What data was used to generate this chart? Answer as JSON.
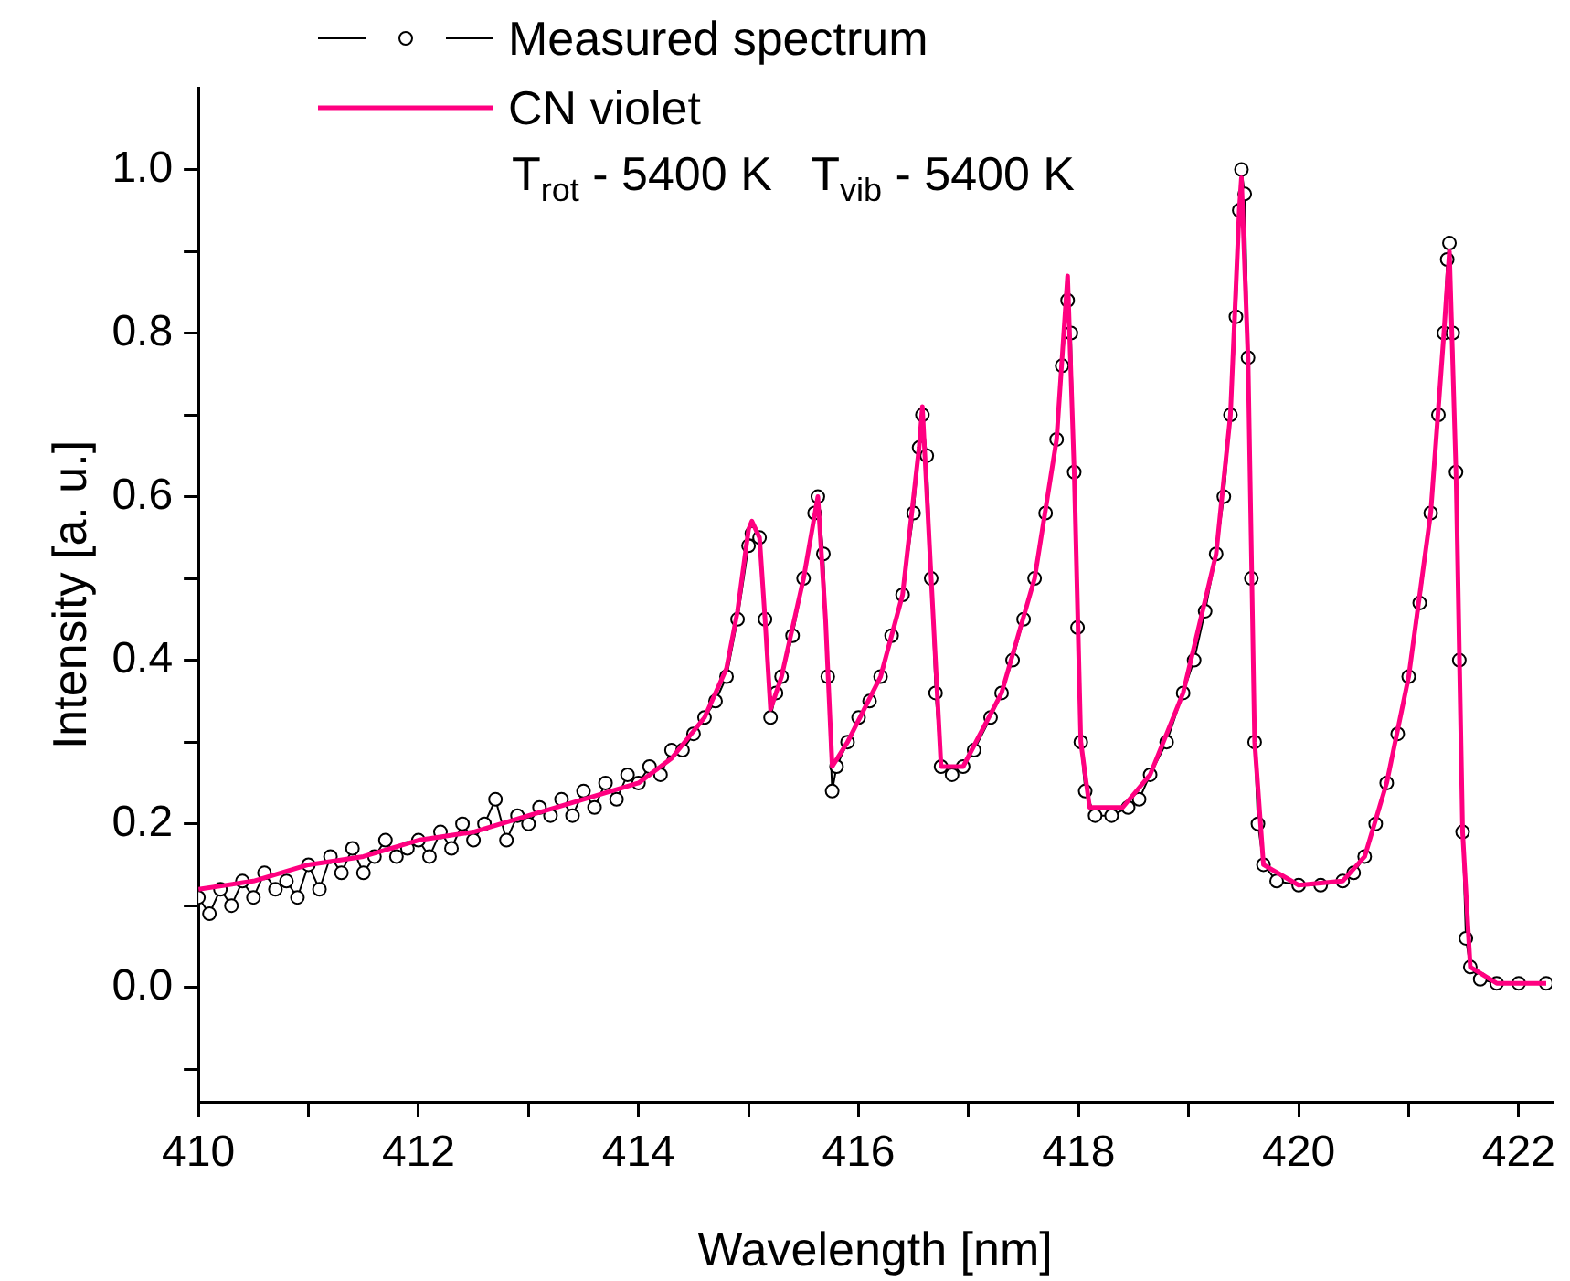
{
  "chart_data": {
    "type": "line",
    "xlabel": "Wavelength [nm]",
    "ylabel": "Intensity [a. u.]",
    "xlim": [
      410,
      422.3
    ],
    "ylim": [
      -0.14,
      1.1
    ],
    "xticks": [
      410,
      {
        "value": 411,
        "label": null
      },
      412,
      {
        "value": 413,
        "label": null
      },
      414,
      {
        "value": 415,
        "label": null
      },
      416,
      {
        "value": 417,
        "label": null
      },
      418,
      {
        "value": 419,
        "label": null
      },
      420,
      {
        "value": 421,
        "label": null
      },
      422
    ],
    "yticks": [
      {
        "value": -0.1,
        "label": null
      },
      {
        "value": 0,
        "label": "0.0"
      },
      {
        "value": 0.1,
        "label": null
      },
      0.2,
      {
        "value": 0.3,
        "label": null
      },
      0.4,
      {
        "value": 0.5,
        "label": null
      },
      0.6,
      {
        "value": 0.7,
        "label": null
      },
      0.8,
      {
        "value": 0.9,
        "label": null
      },
      {
        "value": 1,
        "label": "1.0"
      }
    ],
    "grid": false,
    "legend": "top left",
    "annotations": [
      "T$_{rot}$ - 5400 K   T$_{vib}$ - 5400 K"
    ],
    "series": [
      {
        "name": "Measured spectrum",
        "color": "#000000",
        "marker": "circle",
        "line_style": "solid",
        "x": [
          410.0,
          410.1,
          410.2,
          410.3,
          410.4,
          410.5,
          410.6,
          410.7,
          410.8,
          410.9,
          411.0,
          411.1,
          411.2,
          411.3,
          411.4,
          411.5,
          411.6,
          411.7,
          411.8,
          411.9,
          412.0,
          412.1,
          412.2,
          412.3,
          412.4,
          412.5,
          412.6,
          412.7,
          412.8,
          412.9,
          413.0,
          413.1,
          413.2,
          413.3,
          413.4,
          413.5,
          413.6,
          413.7,
          413.8,
          413.9,
          414.0,
          414.1,
          414.2,
          414.3,
          414.4,
          414.5,
          414.6,
          414.7,
          414.8,
          414.9,
          415.0,
          415.03,
          415.1,
          415.15,
          415.2,
          415.25,
          415.3,
          415.4,
          415.5,
          415.6,
          415.63,
          415.68,
          415.72,
          415.76,
          415.8,
          415.9,
          416.0,
          416.1,
          416.2,
          416.3,
          416.4,
          416.5,
          416.55,
          416.58,
          416.62,
          416.66,
          416.7,
          416.75,
          416.85,
          416.95,
          417.05,
          417.2,
          417.3,
          417.4,
          417.5,
          417.6,
          417.7,
          417.8,
          417.85,
          417.9,
          417.93,
          417.96,
          417.99,
          418.02,
          418.06,
          418.15,
          418.3,
          418.45,
          418.55,
          418.65,
          418.8,
          418.95,
          419.05,
          419.15,
          419.25,
          419.32,
          419.38,
          419.43,
          419.46,
          419.48,
          419.51,
          419.54,
          419.57,
          419.6,
          419.63,
          419.68,
          419.8,
          420.0,
          420.2,
          420.4,
          420.5,
          420.6,
          420.7,
          420.8,
          420.9,
          421.0,
          421.1,
          421.2,
          421.27,
          421.32,
          421.35,
          421.37,
          421.4,
          421.43,
          421.46,
          421.49,
          421.52,
          421.56,
          421.65,
          421.8,
          422.0,
          422.25
        ],
        "values": [
          0.11,
          0.09,
          0.12,
          0.1,
          0.13,
          0.11,
          0.14,
          0.12,
          0.13,
          0.11,
          0.15,
          0.12,
          0.16,
          0.14,
          0.17,
          0.14,
          0.16,
          0.18,
          0.16,
          0.17,
          0.18,
          0.16,
          0.19,
          0.17,
          0.2,
          0.18,
          0.2,
          0.23,
          0.18,
          0.21,
          0.2,
          0.22,
          0.21,
          0.23,
          0.21,
          0.24,
          0.22,
          0.25,
          0.23,
          0.26,
          0.25,
          0.27,
          0.26,
          0.29,
          0.29,
          0.31,
          0.33,
          0.35,
          0.38,
          0.45,
          0.54,
          0.555,
          0.55,
          0.45,
          0.33,
          0.36,
          0.38,
          0.43,
          0.5,
          0.58,
          0.6,
          0.53,
          0.38,
          0.24,
          0.27,
          0.3,
          0.33,
          0.35,
          0.38,
          0.43,
          0.48,
          0.58,
          0.66,
          0.7,
          0.65,
          0.5,
          0.36,
          0.27,
          0.26,
          0.27,
          0.29,
          0.33,
          0.36,
          0.4,
          0.45,
          0.5,
          0.58,
          0.67,
          0.76,
          0.84,
          0.8,
          0.63,
          0.44,
          0.3,
          0.24,
          0.21,
          0.21,
          0.22,
          0.23,
          0.26,
          0.3,
          0.36,
          0.4,
          0.46,
          0.53,
          0.6,
          0.7,
          0.82,
          0.95,
          1.0,
          0.97,
          0.77,
          0.5,
          0.3,
          0.2,
          0.15,
          0.13,
          0.125,
          0.125,
          0.13,
          0.14,
          0.16,
          0.2,
          0.25,
          0.31,
          0.38,
          0.47,
          0.58,
          0.7,
          0.8,
          0.89,
          0.91,
          0.8,
          0.63,
          0.4,
          0.19,
          0.06,
          0.025,
          0.01,
          0.005,
          0.005,
          0.005
        ]
      },
      {
        "name": "CN violet",
        "color": "#ff0080",
        "marker": "none",
        "line_style": "solid",
        "x": [
          410,
          410.5,
          411,
          411.5,
          412,
          412.5,
          413,
          413.5,
          414,
          414.3,
          414.6,
          414.8,
          414.9,
          415.0,
          415.03,
          415.1,
          415.15,
          415.2,
          415.3,
          415.5,
          415.63,
          415.7,
          415.76,
          415.9,
          416.2,
          416.4,
          416.55,
          416.58,
          416.66,
          416.75,
          416.95,
          417.3,
          417.6,
          417.8,
          417.9,
          417.96,
          418.02,
          418.1,
          418.4,
          418.65,
          418.95,
          419.25,
          419.38,
          419.46,
          419.48,
          419.54,
          419.6,
          419.68,
          420.0,
          420.4,
          420.6,
          420.8,
          421.0,
          421.2,
          421.32,
          421.37,
          421.43,
          421.49,
          421.56,
          421.8,
          422.25
        ],
        "values": [
          0.12,
          0.13,
          0.15,
          0.16,
          0.18,
          0.19,
          0.21,
          0.23,
          0.25,
          0.28,
          0.33,
          0.39,
          0.46,
          0.56,
          0.57,
          0.55,
          0.45,
          0.34,
          0.38,
          0.5,
          0.6,
          0.45,
          0.27,
          0.3,
          0.38,
          0.48,
          0.66,
          0.71,
          0.5,
          0.27,
          0.27,
          0.36,
          0.5,
          0.67,
          0.87,
          0.63,
          0.3,
          0.22,
          0.22,
          0.26,
          0.36,
          0.53,
          0.7,
          0.95,
          0.99,
          0.77,
          0.3,
          0.15,
          0.125,
          0.13,
          0.16,
          0.25,
          0.38,
          0.58,
          0.8,
          0.9,
          0.63,
          0.19,
          0.025,
          0.005,
          0.005
        ]
      }
    ]
  }
}
